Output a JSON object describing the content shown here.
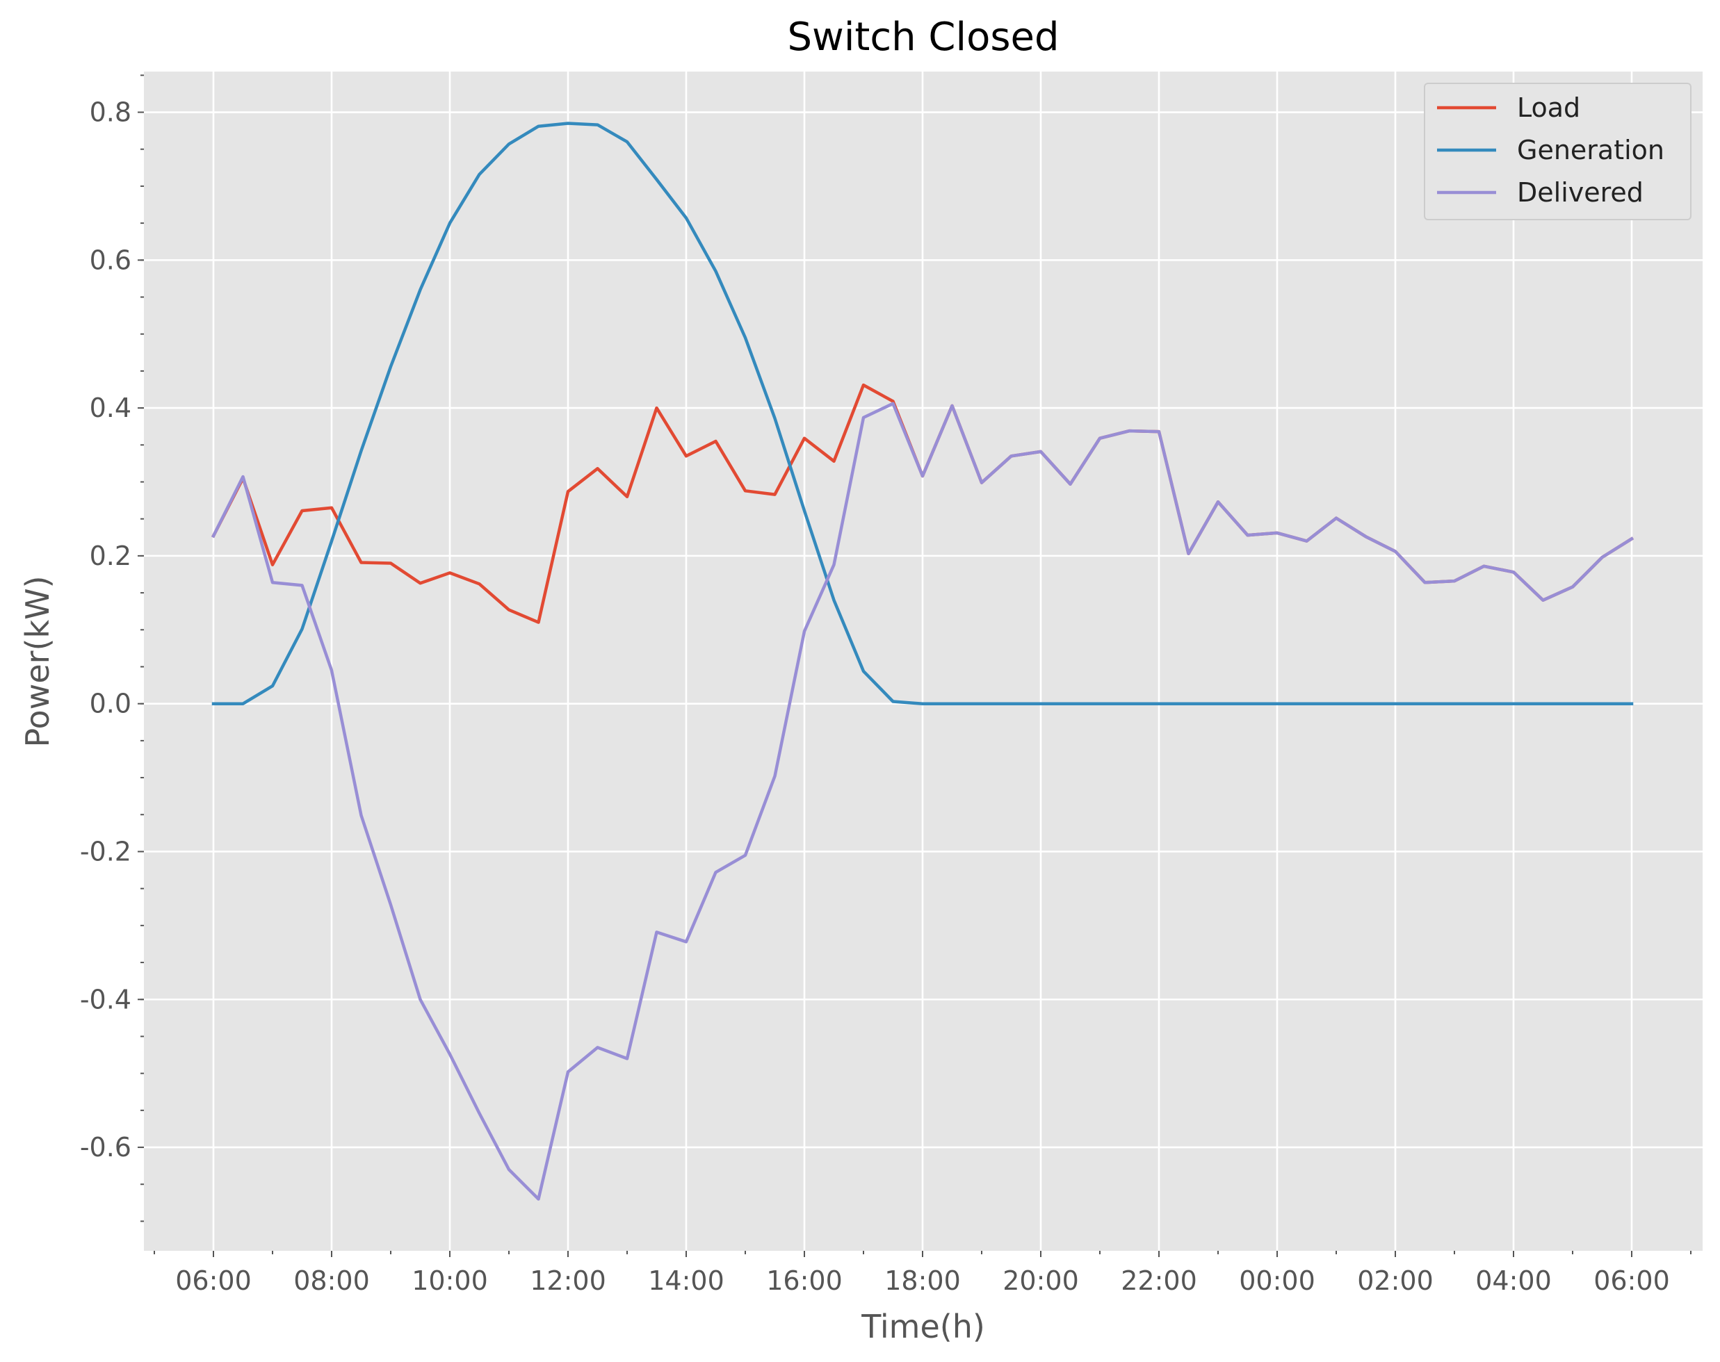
{
  "chart_data": {
    "type": "line",
    "title": "Switch Closed",
    "xlabel": "Time(h)",
    "ylabel": "Power(kW)",
    "x": [
      "06:00",
      "06:30",
      "07:00",
      "07:30",
      "08:00",
      "08:30",
      "09:00",
      "09:30",
      "10:00",
      "10:30",
      "11:00",
      "11:30",
      "12:00",
      "12:30",
      "13:00",
      "13:30",
      "14:00",
      "14:30",
      "15:00",
      "15:30",
      "16:00",
      "16:30",
      "17:00",
      "17:30",
      "18:00",
      "18:30",
      "19:00",
      "19:30",
      "20:00",
      "20:30",
      "21:00",
      "21:30",
      "22:00",
      "22:30",
      "23:00",
      "23:30",
      "00:00",
      "00:30",
      "01:00",
      "01:30",
      "02:00",
      "02:30",
      "03:00",
      "03:30",
      "04:00",
      "04:30",
      "05:00",
      "05:30",
      "06:00"
    ],
    "x_ticks": [
      "06:00",
      "08:00",
      "10:00",
      "12:00",
      "14:00",
      "16:00",
      "18:00",
      "20:00",
      "22:00",
      "00:00",
      "02:00",
      "04:00",
      "06:00"
    ],
    "y_ticks": [
      "-0.6",
      "-0.4",
      "-0.2",
      "0.0",
      "0.2",
      "0.4",
      "0.6",
      "0.8"
    ],
    "ylim": [
      -0.74,
      0.855
    ],
    "grid": true,
    "legend_position": "top-right",
    "series": [
      {
        "name": "Load",
        "color": "#E24A33",
        "values": [
          0.227,
          0.305,
          0.188,
          0.261,
          0.265,
          0.191,
          0.19,
          0.163,
          0.177,
          0.162,
          0.127,
          0.11,
          0.287,
          0.318,
          0.28,
          0.4,
          0.335,
          0.355,
          0.288,
          0.283,
          0.359,
          0.328,
          0.431,
          0.409,
          0.308,
          0.403,
          0.299,
          0.335,
          0.341,
          0.297,
          0.359,
          0.369,
          0.368,
          0.203,
          0.273,
          0.228,
          0.231,
          0.22,
          0.251,
          0.226,
          0.206,
          0.164,
          0.166,
          0.186,
          0.178,
          0.14,
          0.158,
          0.198,
          0.223
        ]
      },
      {
        "name": "Generation",
        "color": "#348ABD",
        "values": [
          0.0,
          0.0,
          0.024,
          0.101,
          0.22,
          0.342,
          0.456,
          0.56,
          0.65,
          0.716,
          0.757,
          0.781,
          0.785,
          0.783,
          0.76,
          0.709,
          0.657,
          0.585,
          0.495,
          0.386,
          0.261,
          0.14,
          0.044,
          0.003,
          0.0,
          0.0,
          0.0,
          0.0,
          0.0,
          0.0,
          0.0,
          0.0,
          0.0,
          0.0,
          0.0,
          0.0,
          0.0,
          0.0,
          0.0,
          0.0,
          0.0,
          0.0,
          0.0,
          0.0,
          0.0,
          0.0,
          0.0,
          0.0,
          0.0
        ]
      },
      {
        "name": "Delivered",
        "color": "#988ED5",
        "values": [
          0.227,
          0.307,
          0.164,
          0.16,
          0.045,
          -0.151,
          -0.272,
          -0.4,
          -0.474,
          -0.554,
          -0.63,
          -0.67,
          -0.498,
          -0.465,
          -0.48,
          -0.309,
          -0.322,
          -0.228,
          -0.205,
          -0.098,
          0.098,
          0.188,
          0.387,
          0.406,
          0.308,
          0.403,
          0.299,
          0.335,
          0.341,
          0.297,
          0.359,
          0.369,
          0.368,
          0.203,
          0.273,
          0.228,
          0.231,
          0.22,
          0.251,
          0.226,
          0.206,
          0.164,
          0.166,
          0.186,
          0.178,
          0.14,
          0.158,
          0.198,
          0.223
        ]
      }
    ]
  }
}
